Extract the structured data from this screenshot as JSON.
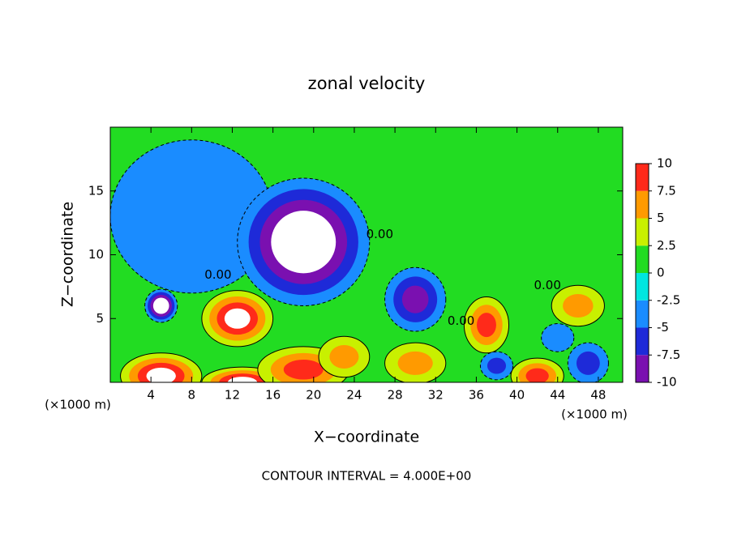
{
  "chart_data": {
    "type": "contour",
    "title": "zonal velocity",
    "xlabel": "X−coordinate",
    "ylabel": "Z−coordinate",
    "x_unit": "(×1000 m)",
    "footer": "CONTOUR INTERVAL = 4.000E+00",
    "xlim": [
      0,
      50.4
    ],
    "ylim": [
      0,
      20
    ],
    "xticks": [
      4,
      8,
      12,
      16,
      20,
      24,
      28,
      32,
      36,
      40,
      44,
      48
    ],
    "yticks": [
      5,
      10,
      15
    ],
    "colorbar": {
      "lim": [
        -10,
        10
      ],
      "ticks": [
        -10,
        -7.5,
        -5,
        -2.5,
        0,
        2.5,
        5,
        7.5,
        10
      ],
      "colors": [
        "#7a10b0",
        "#1e2ad8",
        "#1a8cff",
        "#00e6e0",
        "#22dc22",
        "#c8f000",
        "#ff9a00",
        "#ff2a1a",
        "#ffa0a8"
      ]
    },
    "features": [
      {
        "x": 8,
        "z": 13,
        "dx": 8,
        "dz": 6,
        "value": -3
      },
      {
        "x": 19,
        "z": 11,
        "dx": 6.5,
        "dz": 5,
        "value": -11
      },
      {
        "x": 30,
        "z": 6.5,
        "dx": 3,
        "dz": 2.5,
        "value": -8
      },
      {
        "x": 5,
        "z": 6,
        "dx": 1.6,
        "dz": 1.3,
        "value": -11
      },
      {
        "x": 12.5,
        "z": 5,
        "dx": 3.5,
        "dz": 2.2,
        "value": 10
      },
      {
        "x": 5,
        "z": 0.5,
        "dx": 4,
        "dz": 1.8,
        "value": 10
      },
      {
        "x": 13,
        "z": 0,
        "dx": 4,
        "dz": 1.2,
        "value": 10
      },
      {
        "x": 19,
        "z": 1,
        "dx": 4.5,
        "dz": 1.8,
        "value": 9
      },
      {
        "x": 23,
        "z": 2,
        "dx": 2.5,
        "dz": 1.6,
        "value": 7
      },
      {
        "x": 30,
        "z": 1.5,
        "dx": 3,
        "dz": 1.6,
        "value": 6
      },
      {
        "x": 37,
        "z": 4.5,
        "dx": 2.2,
        "dz": 2.2,
        "value": 8
      },
      {
        "x": 38,
        "z": 1.3,
        "dx": 1.6,
        "dz": 1.1,
        "value": -6
      },
      {
        "x": 42,
        "z": 0.5,
        "dx": 2.6,
        "dz": 1.4,
        "value": 9
      },
      {
        "x": 46,
        "z": 6,
        "dx": 2.6,
        "dz": 1.6,
        "value": 7
      },
      {
        "x": 44,
        "z": 3.5,
        "dx": 1.6,
        "dz": 1.1,
        "value": -4
      },
      {
        "x": 47,
        "z": 1.5,
        "dx": 2,
        "dz": 1.6,
        "value": -6
      }
    ],
    "annotations": [
      {
        "text": "0.00",
        "x": 10.6,
        "z": 8.4
      },
      {
        "text": "0.00",
        "x": 26.5,
        "z": 11.6
      },
      {
        "text": "0.00",
        "x": 34.5,
        "z": 4.8
      },
      {
        "text": "0.00",
        "x": 43,
        "z": 7.6
      }
    ]
  }
}
